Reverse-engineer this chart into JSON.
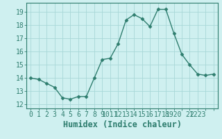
{
  "x": [
    0,
    1,
    2,
    3,
    4,
    5,
    6,
    7,
    8,
    9,
    10,
    11,
    12,
    13,
    14,
    15,
    16,
    17,
    18,
    19,
    20,
    21,
    22,
    23
  ],
  "y": [
    14.0,
    13.9,
    13.6,
    13.3,
    12.5,
    12.4,
    12.6,
    12.6,
    14.0,
    15.4,
    15.5,
    16.6,
    18.4,
    18.8,
    18.5,
    17.9,
    19.2,
    19.2,
    17.4,
    15.8,
    15.0,
    14.3,
    14.2,
    14.3
  ],
  "line_color": "#2e7d6e",
  "marker": "D",
  "marker_size": 2.5,
  "bg_color": "#cff0f0",
  "grid_color": "#a8d8d8",
  "xlabel": "Humidex (Indice chaleur)",
  "xlim": [
    -0.5,
    23.5
  ],
  "ylim": [
    11.7,
    19.7
  ],
  "yticks": [
    12,
    13,
    14,
    15,
    16,
    17,
    18,
    19
  ],
  "xticks": [
    0,
    1,
    2,
    3,
    4,
    5,
    6,
    7,
    8,
    9,
    10,
    11,
    12,
    13,
    14,
    15,
    16,
    17,
    18,
    19,
    20,
    21,
    22,
    23
  ],
  "xtick_labels": [
    "0",
    "1",
    "2",
    "3",
    "4",
    "5",
    "6",
    "7",
    "8",
    "9",
    "1011",
    "12",
    "13",
    "14",
    "15",
    "16",
    "17",
    "18",
    "1920",
    "",
    "21",
    "2223",
    "",
    ""
  ],
  "line_color_hex": "#2e7d6e",
  "tick_color": "#2e7d6e",
  "font_size_tick": 7,
  "xlabel_fontsize": 8.5
}
